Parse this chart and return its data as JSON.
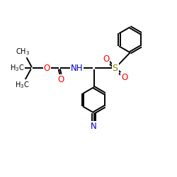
{
  "bg_color": "#ffffff",
  "line_color": "#000000",
  "bond_lw": 1.4,
  "figsize": [
    2.5,
    2.5
  ],
  "dpi": 100,
  "colors": {
    "N": "#0000cc",
    "O": "#ff0000",
    "S": "#808000",
    "C": "#000000"
  },
  "xlim": [
    0,
    10
  ],
  "ylim": [
    0,
    10
  ]
}
